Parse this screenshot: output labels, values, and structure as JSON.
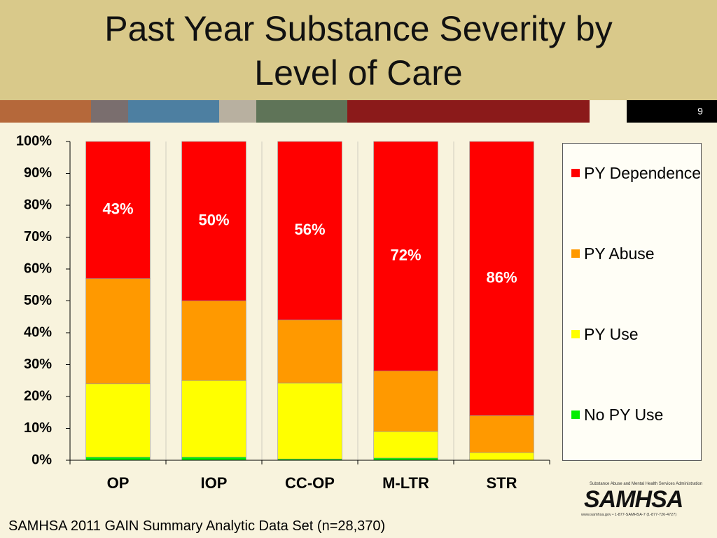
{
  "chart_data": {
    "type": "stacked_bar",
    "title": "Past Year Substance Severity by Level of Care",
    "categories": [
      "OP",
      "IOP",
      "CC-OP",
      "M-LTR",
      "STR"
    ],
    "series": [
      {
        "name": "No PY Use",
        "color": "#00ee00",
        "values": [
          1,
          1,
          0.4,
          0.7,
          0
        ]
      },
      {
        "name": "PY Use",
        "color": "#ffff00",
        "values": [
          23,
          24,
          23.8,
          8.3,
          2.4
        ]
      },
      {
        "name": "PY Abuse",
        "color": "#ff9900",
        "values": [
          33,
          25,
          19.8,
          19,
          11.6
        ]
      },
      {
        "name": "PY Dependence",
        "color": "#ff0000",
        "values": [
          43,
          50,
          56,
          72,
          86
        ],
        "value_labels": [
          "43%",
          "50%",
          "56%",
          "72%",
          "86%"
        ]
      }
    ],
    "ylim": [
      0,
      100
    ],
    "yticks": [
      {
        "value": 0,
        "label": "0%"
      },
      {
        "value": 10,
        "label": "10%"
      },
      {
        "value": 20,
        "label": "20%"
      },
      {
        "value": 30,
        "label": "30%"
      },
      {
        "value": 40,
        "label": "40%"
      },
      {
        "value": 50,
        "label": "50%"
      },
      {
        "value": 60,
        "label": "60%"
      },
      {
        "value": 70,
        "label": "70%"
      },
      {
        "value": 80,
        "label": "80%"
      },
      {
        "value": 90,
        "label": "90%"
      },
      {
        "value": 100,
        "label": "100%"
      }
    ],
    "legend": "right"
  },
  "slide": {
    "page_number": "9",
    "footnote": "SAMHSA 2011 GAIN Summary Analytic Data Set (n=28,370)",
    "logo": {
      "name": "SAMHSA",
      "subtitle": "Substance Abuse and Mental Health Services Administration",
      "contact": "www.samhsa.gov • 1-877-SAMHSA-7 (1-877-726-4727)"
    }
  }
}
